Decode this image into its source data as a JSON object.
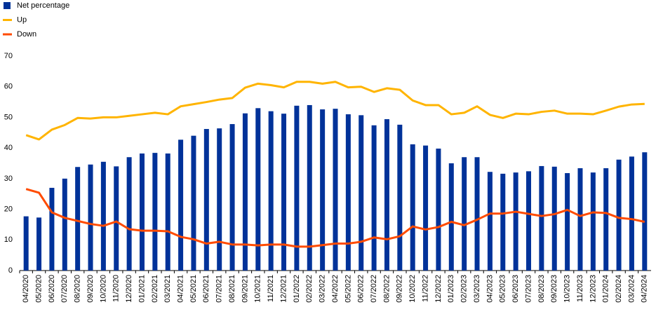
{
  "chart_data": {
    "type": "bar_line",
    "categories": [
      "04/2020",
      "05/2020",
      "06/2020",
      "07/2020",
      "08/2020",
      "09/2020",
      "10/2020",
      "11/2020",
      "12/2020",
      "01/2021",
      "02/2021",
      "03/2021",
      "04/2021",
      "05/2021",
      "06/2021",
      "07/2021",
      "08/2021",
      "09/2021",
      "10/2021",
      "11/2021",
      "12/2021",
      "01/2022",
      "02/2022",
      "03/2022",
      "04/2022",
      "05/2022",
      "06/2022",
      "07/2022",
      "08/2022",
      "09/2022",
      "10/2022",
      "11/2022",
      "12/2022",
      "01/2023",
      "02/2023",
      "03/2023",
      "04/2023",
      "05/2023",
      "06/2023",
      "07/2023",
      "08/2023",
      "09/2023",
      "10/2023",
      "11/2023",
      "12/2023",
      "01/2024",
      "02/2024",
      "03/2024",
      "04/2024"
    ],
    "series": [
      {
        "name": "Net percentage",
        "type": "bar",
        "color": "#003299",
        "values": [
          17.7,
          17.3,
          27,
          30,
          33.8,
          34.6,
          35.5,
          34,
          37,
          38.2,
          38.4,
          38.2,
          42.7,
          44,
          46.2,
          46.4,
          47.8,
          51.3,
          53,
          52,
          51.2,
          53.8,
          54,
          52.6,
          52.8,
          51,
          50.7,
          47.4,
          49.4,
          47.6,
          41.2,
          40.8,
          39.8,
          35,
          37,
          37,
          32.2,
          31.6,
          32,
          32.4,
          34.1,
          33.9,
          31.8,
          33.4,
          32,
          33.4,
          36.2,
          37.2,
          38.6
        ]
      },
      {
        "name": "Up",
        "type": "line",
        "color": "#ffb400",
        "values": [
          44.2,
          42.8,
          46,
          47.5,
          49.8,
          49.6,
          50,
          50,
          50.5,
          51,
          51.5,
          51,
          53.6,
          54.3,
          55,
          55.8,
          56.3,
          59.7,
          61,
          60.5,
          59.8,
          61.6,
          61.6,
          61,
          61.6,
          59.8,
          60,
          58.3,
          59.5,
          59,
          55.5,
          54,
          54,
          51,
          51.5,
          53.6,
          50.8,
          49.8,
          51.2,
          51,
          51.8,
          52.2,
          51.2,
          51.2,
          51,
          52.2,
          53.5,
          54.2,
          54.4
        ]
      },
      {
        "name": "Down",
        "type": "line",
        "color": "#ff4b00",
        "values": [
          26.6,
          25.4,
          19,
          17.2,
          16.2,
          15.2,
          14.6,
          16,
          13.5,
          13,
          13,
          12.8,
          11,
          10.2,
          8.8,
          9.4,
          8.5,
          8.5,
          8.2,
          8.5,
          8.5,
          7.8,
          7.8,
          8.3,
          8.8,
          8.8,
          9.4,
          10.8,
          10.2,
          11.2,
          14.4,
          13.4,
          14.2,
          15.9,
          14.8,
          16.6,
          18.6,
          18.6,
          19.2,
          18.5,
          17.8,
          18.4,
          19.8,
          17.8,
          19,
          18.8,
          17.2,
          16.8,
          15.9
        ]
      }
    ],
    "ylim": [
      0,
      70
    ],
    "yticks": [
      0,
      10,
      20,
      30,
      40,
      50,
      60,
      70
    ],
    "grid": false,
    "legend": "top-left"
  }
}
